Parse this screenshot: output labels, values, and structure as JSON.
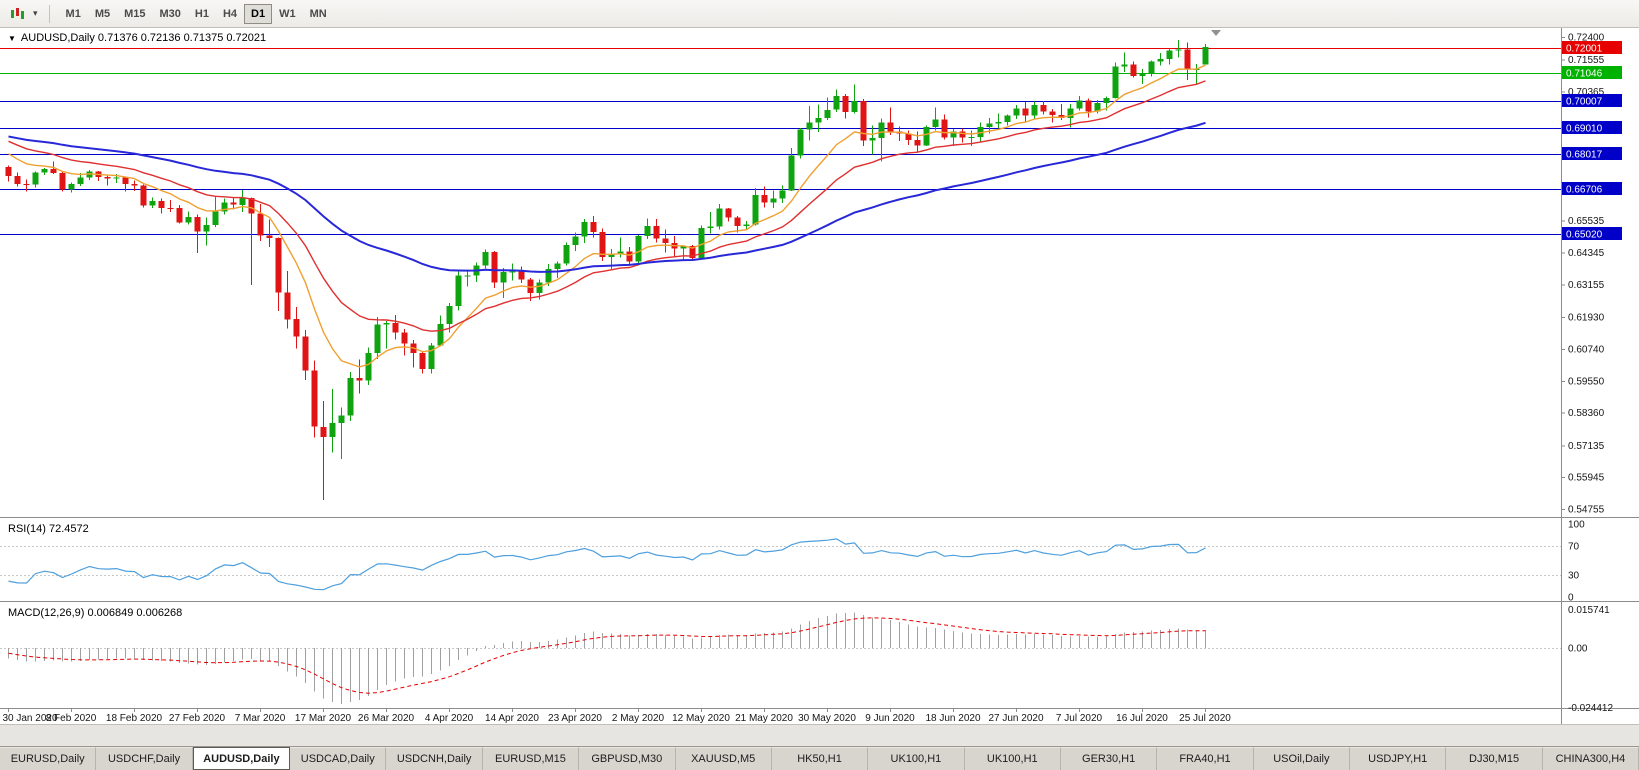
{
  "toolbar": {
    "periods": [
      "M1",
      "M5",
      "M15",
      "M30",
      "H1",
      "H4",
      "D1",
      "W1",
      "MN"
    ],
    "active_period": "D1",
    "chart_type_icon": "candlestick-chart",
    "dropdown_icon": "caret-down"
  },
  "labels": {
    "main": "AUDUSD,Daily 0.71376 0.72136 0.71375 0.72021",
    "rsi": "RSI(14) 72.4572",
    "macd": "MACD(12,26,9) 0.006849 0.006268"
  },
  "chart": {
    "price_axis_labels": [
      "0.72400",
      "0.71555",
      "0.70365",
      "0.65535",
      "0.64345",
      "0.63155",
      "0.61930",
      "0.60740",
      "0.59550",
      "0.58360",
      "0.57135",
      "0.55945",
      "0.54755"
    ],
    "colors": {
      "up": "#10A310",
      "down": "#E01414",
      "axis_line": "#8c8c8c"
    }
  },
  "rsi": {
    "period": 14,
    "value": "72.4572",
    "color": "#4E9FDD",
    "level_lines": [
      70,
      30
    ],
    "axis_labels": [
      {
        "text": "100",
        "value": 100
      },
      {
        "text": "70",
        "value": 70
      },
      {
        "text": "30",
        "value": 30
      },
      {
        "text": "0",
        "value": 0
      }
    ]
  },
  "macd": {
    "fast": 12,
    "slow": 26,
    "signal": 9,
    "macd_value": "0.006849",
    "signal_value": "0.006268",
    "histogram_color": "#A0A0A0",
    "signal_color": "#E60000",
    "axis_labels": [
      {
        "text": "0.015741",
        "value": 0.015741
      },
      {
        "text": "0.00",
        "value": 0
      },
      {
        "text": "-0.024412",
        "value": -0.024412
      }
    ]
  },
  "tabs": {
    "active_index": 2,
    "items": [
      "EURUSD,Daily",
      "USDCHF,Daily",
      "AUDUSD,Daily",
      "USDCAD,Daily",
      "USDCNH,Daily",
      "EURUSD,M15",
      "GBPUSD,M30",
      "XAUUSD,M5",
      "HK50,H1",
      "UK100,H1",
      "UK100,H1",
      "GER30,H1",
      "FRA40,H1",
      "USOil,Daily",
      "USDJPY,H1",
      "DJ30,M15",
      "CHINA300,H4"
    ]
  },
  "chart_data": {
    "type": "candlestick",
    "symbol": "AUDUSD",
    "timeframe": "Daily",
    "ohlc_current": {
      "open": 0.71376,
      "high": 0.72136,
      "low": 0.71375,
      "close": 0.72021
    },
    "ylim": [
      0.54457,
      0.72737
    ],
    "label_step": 7,
    "x_labels": [
      "30 Jan 2020",
      "8 Feb 2020",
      "18 Feb 2020",
      "27 Feb 2020",
      "7 Mar 2020",
      "17 Mar 2020",
      "26 Mar 2020",
      "4 Apr 2020",
      "14 Apr 2020",
      "23 Apr 2020",
      "2 May 2020",
      "12 May 2020",
      "21 May 2020",
      "30 May 2020",
      "9 Jun 2020",
      "18 Jun 2020",
      "27 Jun 2020",
      "7 Jul 2020",
      "16 Jul 2020",
      "25 Jul 2020"
    ],
    "levels": [
      {
        "price": 0.72001,
        "label": "0.72001",
        "color": "#E60000"
      },
      {
        "price": 0.71046,
        "label": "0.71046",
        "color": "#00B200"
      },
      {
        "price": 0.70007,
        "label": "0.70007",
        "color": "#0000C8"
      },
      {
        "price": 0.6901,
        "label": "0.69010",
        "color": "#0000C8"
      },
      {
        "price": 0.68017,
        "label": "0.68017",
        "color": "#0000C8"
      },
      {
        "price": 0.66706,
        "label": "0.66706",
        "color": "#0000C8"
      },
      {
        "price": 0.6502,
        "label": "0.65020",
        "color": "#0000C8"
      }
    ],
    "moving_averages": [
      {
        "period": 10,
        "color": "#F0A030",
        "width": 1.4
      },
      {
        "period": 21,
        "color": "#E03030",
        "width": 1.4
      },
      {
        "period": 55,
        "color": "#2828D8",
        "width": 2
      }
    ],
    "pre_closes": [
      0.682,
      0.6838,
      0.6826,
      0.6846,
      0.6852,
      0.687,
      0.6858,
      0.688,
      0.6896,
      0.6885,
      0.6902,
      0.691,
      0.6925,
      0.694,
      0.6933,
      0.6948,
      0.696,
      0.6955,
      0.6972,
      0.6985,
      0.7002,
      0.702,
      0.6995,
      0.698,
      0.6962,
      0.6948,
      0.6956,
      0.694,
      0.6922,
      0.69,
      0.691,
      0.6885,
      0.6865,
      0.6845,
      0.6855,
      0.683,
      0.681,
      0.6785,
      0.676,
      0.6755
    ],
    "candles": [
      [
        0.6755,
        0.676,
        0.67,
        0.6721
      ],
      [
        0.6721,
        0.6733,
        0.6682,
        0.6691
      ],
      [
        0.6691,
        0.6707,
        0.6662,
        0.6689
      ],
      [
        0.6689,
        0.6738,
        0.6678,
        0.6733
      ],
      [
        0.6733,
        0.675,
        0.6725,
        0.6746
      ],
      [
        0.6746,
        0.6775,
        0.6727,
        0.6731
      ],
      [
        0.6731,
        0.674,
        0.6662,
        0.667
      ],
      [
        0.667,
        0.6697,
        0.6658,
        0.669
      ],
      [
        0.669,
        0.6732,
        0.6683,
        0.6715
      ],
      [
        0.6715,
        0.6743,
        0.6705,
        0.6738
      ],
      [
        0.6738,
        0.674,
        0.6702,
        0.6716
      ],
      [
        0.6716,
        0.6723,
        0.6684,
        0.6712
      ],
      [
        0.6712,
        0.6727,
        0.6695,
        0.6715
      ],
      [
        0.6715,
        0.6717,
        0.6663,
        0.669
      ],
      [
        0.669,
        0.6703,
        0.6665,
        0.6685
      ],
      [
        0.6685,
        0.6688,
        0.6603,
        0.661
      ],
      [
        0.661,
        0.664,
        0.66,
        0.6627
      ],
      [
        0.6627,
        0.6637,
        0.658,
        0.6601
      ],
      [
        0.6601,
        0.663,
        0.6585,
        0.66
      ],
      [
        0.66,
        0.6612,
        0.6542,
        0.6546
      ],
      [
        0.6546,
        0.6587,
        0.654,
        0.6567
      ],
      [
        0.6567,
        0.6576,
        0.6433,
        0.6513
      ],
      [
        0.6513,
        0.6565,
        0.646,
        0.6537
      ],
      [
        0.6537,
        0.6646,
        0.653,
        0.6587
      ],
      [
        0.6587,
        0.6637,
        0.6577,
        0.6622
      ],
      [
        0.6622,
        0.664,
        0.6595,
        0.6613
      ],
      [
        0.6613,
        0.6668,
        0.6585,
        0.6639
      ],
      [
        0.6639,
        0.664,
        0.6313,
        0.6581
      ],
      [
        0.6581,
        0.6616,
        0.6477,
        0.6498
      ],
      [
        0.6498,
        0.6557,
        0.6455,
        0.6489
      ],
      [
        0.6489,
        0.649,
        0.6215,
        0.6285
      ],
      [
        0.6285,
        0.6365,
        0.615,
        0.6185
      ],
      [
        0.6185,
        0.623,
        0.6075,
        0.612
      ],
      [
        0.612,
        0.6145,
        0.5958,
        0.5994
      ],
      [
        0.5994,
        0.603,
        0.5743,
        0.5783
      ],
      [
        0.5783,
        0.588,
        0.551,
        0.5745
      ],
      [
        0.5745,
        0.5925,
        0.5686,
        0.5797
      ],
      [
        0.5797,
        0.5855,
        0.5663,
        0.5826
      ],
      [
        0.5826,
        0.5988,
        0.5805,
        0.5966
      ],
      [
        0.5966,
        0.6035,
        0.5908,
        0.5956
      ],
      [
        0.5956,
        0.608,
        0.594,
        0.6058
      ],
      [
        0.6058,
        0.6193,
        0.6037,
        0.6166
      ],
      [
        0.6166,
        0.6178,
        0.6076,
        0.6171
      ],
      [
        0.6171,
        0.62,
        0.611,
        0.6136
      ],
      [
        0.6136,
        0.6148,
        0.605,
        0.6095
      ],
      [
        0.6095,
        0.6107,
        0.6005,
        0.6059
      ],
      [
        0.6059,
        0.6066,
        0.5982,
        0.5999
      ],
      [
        0.5999,
        0.6097,
        0.5983,
        0.6087
      ],
      [
        0.6087,
        0.6199,
        0.6083,
        0.6168
      ],
      [
        0.6168,
        0.6245,
        0.6135,
        0.6234
      ],
      [
        0.6234,
        0.6363,
        0.6217,
        0.6348
      ],
      [
        0.6348,
        0.6368,
        0.6308,
        0.6348
      ],
      [
        0.6348,
        0.6397,
        0.6325,
        0.6385
      ],
      [
        0.6385,
        0.6445,
        0.6375,
        0.6436
      ],
      [
        0.6436,
        0.6441,
        0.6302,
        0.6323
      ],
      [
        0.6323,
        0.6376,
        0.6265,
        0.6362
      ],
      [
        0.6362,
        0.6394,
        0.633,
        0.6364
      ],
      [
        0.6364,
        0.6382,
        0.632,
        0.6334
      ],
      [
        0.6334,
        0.634,
        0.6253,
        0.6283
      ],
      [
        0.6283,
        0.6333,
        0.6258,
        0.6323
      ],
      [
        0.6323,
        0.6391,
        0.631,
        0.6373
      ],
      [
        0.6373,
        0.64,
        0.634,
        0.6394
      ],
      [
        0.6394,
        0.6472,
        0.6386,
        0.6463
      ],
      [
        0.6463,
        0.651,
        0.644,
        0.6495
      ],
      [
        0.6495,
        0.6559,
        0.647,
        0.6549
      ],
      [
        0.6549,
        0.657,
        0.649,
        0.6511
      ],
      [
        0.6511,
        0.6525,
        0.6402,
        0.6417
      ],
      [
        0.6417,
        0.6447,
        0.6372,
        0.6428
      ],
      [
        0.6428,
        0.649,
        0.6415,
        0.6439
      ],
      [
        0.6439,
        0.6455,
        0.639,
        0.64
      ],
      [
        0.64,
        0.65,
        0.6385,
        0.6496
      ],
      [
        0.6496,
        0.6561,
        0.6485,
        0.6533
      ],
      [
        0.6533,
        0.656,
        0.6472,
        0.6486
      ],
      [
        0.6486,
        0.652,
        0.6435,
        0.647
      ],
      [
        0.647,
        0.6497,
        0.642,
        0.6449
      ],
      [
        0.6449,
        0.646,
        0.6403,
        0.6459
      ],
      [
        0.6459,
        0.6463,
        0.6402,
        0.6413
      ],
      [
        0.6413,
        0.6535,
        0.641,
        0.6526
      ],
      [
        0.6526,
        0.6585,
        0.6505,
        0.6532
      ],
      [
        0.6532,
        0.6616,
        0.652,
        0.6599
      ],
      [
        0.6599,
        0.6601,
        0.6551,
        0.6566
      ],
      [
        0.6566,
        0.657,
        0.651,
        0.6534
      ],
      [
        0.6534,
        0.6552,
        0.652,
        0.6539
      ],
      [
        0.6539,
        0.6675,
        0.6535,
        0.665
      ],
      [
        0.665,
        0.6681,
        0.6602,
        0.6621
      ],
      [
        0.6621,
        0.6666,
        0.6601,
        0.6637
      ],
      [
        0.6637,
        0.6684,
        0.662,
        0.6667
      ],
      [
        0.6667,
        0.6826,
        0.6665,
        0.6797
      ],
      [
        0.6797,
        0.6899,
        0.6785,
        0.6894
      ],
      [
        0.6894,
        0.6983,
        0.6853,
        0.692
      ],
      [
        0.692,
        0.6988,
        0.6885,
        0.6938
      ],
      [
        0.6938,
        0.7013,
        0.693,
        0.6968
      ],
      [
        0.6968,
        0.7043,
        0.696,
        0.7019
      ],
      [
        0.7019,
        0.7027,
        0.6935,
        0.6959
      ],
      [
        0.6959,
        0.7063,
        0.6955,
        0.7
      ],
      [
        0.7,
        0.7008,
        0.6832,
        0.6853
      ],
      [
        0.6853,
        0.691,
        0.68,
        0.6863
      ],
      [
        0.6863,
        0.6935,
        0.6775,
        0.692
      ],
      [
        0.692,
        0.6977,
        0.6874,
        0.6886
      ],
      [
        0.6886,
        0.6905,
        0.6852,
        0.688
      ],
      [
        0.688,
        0.689,
        0.6837,
        0.6855
      ],
      [
        0.6855,
        0.6886,
        0.681,
        0.6834
      ],
      [
        0.6834,
        0.691,
        0.6832,
        0.6903
      ],
      [
        0.6903,
        0.6976,
        0.689,
        0.6932
      ],
      [
        0.6932,
        0.695,
        0.6857,
        0.6864
      ],
      [
        0.6864,
        0.6896,
        0.6832,
        0.6886
      ],
      [
        0.6886,
        0.6898,
        0.6845,
        0.6864
      ],
      [
        0.6864,
        0.689,
        0.6832,
        0.6867
      ],
      [
        0.6867,
        0.692,
        0.6847,
        0.6903
      ],
      [
        0.6903,
        0.6938,
        0.688,
        0.6916
      ],
      [
        0.6916,
        0.6955,
        0.69,
        0.6923
      ],
      [
        0.6923,
        0.6951,
        0.691,
        0.6947
      ],
      [
        0.6947,
        0.6985,
        0.6933,
        0.6973
      ],
      [
        0.6973,
        0.6997,
        0.6923,
        0.6946
      ],
      [
        0.6946,
        0.6999,
        0.6935,
        0.6985
      ],
      [
        0.6985,
        0.7001,
        0.695,
        0.6961
      ],
      [
        0.6961,
        0.697,
        0.692,
        0.6948
      ],
      [
        0.6948,
        0.699,
        0.693,
        0.6938
      ],
      [
        0.6938,
        0.699,
        0.6902,
        0.6973
      ],
      [
        0.6973,
        0.7019,
        0.6965,
        0.7003
      ],
      [
        0.7003,
        0.701,
        0.694,
        0.6962
      ],
      [
        0.6962,
        0.7004,
        0.6954,
        0.6994
      ],
      [
        0.6994,
        0.7018,
        0.6965,
        0.7012
      ],
      [
        0.7012,
        0.7144,
        0.701,
        0.713
      ],
      [
        0.713,
        0.7183,
        0.711,
        0.7137
      ],
      [
        0.7137,
        0.7148,
        0.7088,
        0.7095
      ],
      [
        0.7095,
        0.712,
        0.7064,
        0.7104
      ],
      [
        0.7104,
        0.7152,
        0.7093,
        0.7149
      ],
      [
        0.7149,
        0.718,
        0.7133,
        0.7157
      ],
      [
        0.7157,
        0.7198,
        0.7137,
        0.719
      ],
      [
        0.719,
        0.7228,
        0.7163,
        0.7193
      ],
      [
        0.7193,
        0.722,
        0.708,
        0.7118
      ],
      [
        0.7118,
        0.714,
        0.7063,
        0.7121
      ],
      [
        0.71376,
        0.72136,
        0.71375,
        0.72021
      ]
    ]
  }
}
